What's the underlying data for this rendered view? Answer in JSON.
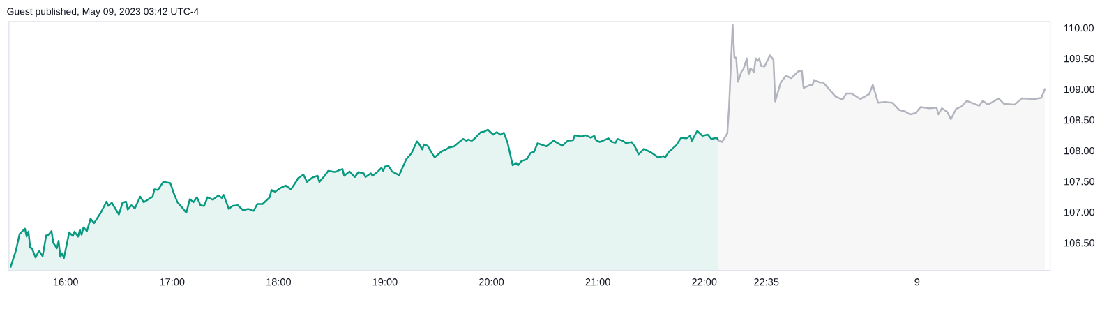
{
  "chart_data": {
    "type": "area",
    "title": "Guest published, May 09, 2023 03:42 UTC-4",
    "xlim": [
      "2023-05-08T15:28",
      "2023-05-09T01:15"
    ],
    "ylim": [
      106.05,
      110.1
    ],
    "xticks": [
      {
        "value": "2023-05-08T16:00",
        "label": "16:00"
      },
      {
        "value": "2023-05-08T17:00",
        "label": "17:00"
      },
      {
        "value": "2023-05-08T18:00",
        "label": "18:00"
      },
      {
        "value": "2023-05-08T19:00",
        "label": "19:00"
      },
      {
        "value": "2023-05-08T20:00",
        "label": "20:00"
      },
      {
        "value": "2023-05-08T21:00",
        "label": "21:00"
      },
      {
        "value": "2023-05-08T22:00",
        "label": "22:00"
      },
      {
        "value": "2023-05-08T22:35",
        "label": "22:35"
      },
      {
        "value": "2023-05-09T00:00",
        "label": "9"
      }
    ],
    "yticks": [
      {
        "value": 106.5,
        "label": "106.50"
      },
      {
        "value": 107,
        "label": "107.00"
      },
      {
        "value": 107.5,
        "label": "107.50"
      },
      {
        "value": 108,
        "label": "108.00"
      },
      {
        "value": 108.5,
        "label": "108.50"
      },
      {
        "value": 109,
        "label": "109.00"
      },
      {
        "value": 109.5,
        "label": "109.50"
      },
      {
        "value": 110,
        "label": "110.00"
      }
    ],
    "grid": false,
    "legend": false,
    "series": [
      {
        "color": "#089981",
        "x": [
          "2023-05-08T15:29",
          "2023-05-08T15:32",
          "2023-05-08T15:34",
          "2023-05-08T15:37",
          "2023-05-08T15:38",
          "2023-05-08T15:39",
          "2023-05-08T15:40",
          "2023-05-08T15:41",
          "2023-05-08T15:43",
          "2023-05-08T15:45",
          "2023-05-08T15:47",
          "2023-05-08T15:49",
          "2023-05-08T15:50",
          "2023-05-08T15:52",
          "2023-05-08T15:53",
          "2023-05-08T15:55",
          "2023-05-08T15:56",
          "2023-05-08T15:57",
          "2023-05-08T15:58",
          "2023-05-08T15:59",
          "2023-05-08T16:02",
          "2023-05-08T16:04",
          "2023-05-08T16:05",
          "2023-05-08T16:07",
          "2023-05-08T16:08",
          "2023-05-08T16:09",
          "2023-05-08T16:10",
          "2023-05-08T16:12",
          "2023-05-08T16:14",
          "2023-05-08T16:16",
          "2023-05-08T16:20",
          "2023-05-08T16:23",
          "2023-05-08T16:24",
          "2023-05-08T16:26",
          "2023-05-08T16:30",
          "2023-05-08T16:32",
          "2023-05-08T16:34",
          "2023-05-08T16:35",
          "2023-05-08T16:37",
          "2023-05-08T16:39",
          "2023-05-08T16:42",
          "2023-05-08T16:44",
          "2023-05-08T16:49",
          "2023-05-08T16:50",
          "2023-05-08T16:52",
          "2023-05-08T16:55",
          "2023-05-08T16:59",
          "2023-05-08T17:01",
          "2023-05-08T17:03",
          "2023-05-08T17:06",
          "2023-05-08T17:08",
          "2023-05-08T17:09",
          "2023-05-08T17:10",
          "2023-05-08T17:12",
          "2023-05-08T17:14",
          "2023-05-08T17:16",
          "2023-05-08T17:18",
          "2023-05-08T17:20",
          "2023-05-08T17:23",
          "2023-05-08T17:26",
          "2023-05-08T17:28",
          "2023-05-08T17:29",
          "2023-05-08T17:32",
          "2023-05-08T17:34",
          "2023-05-08T17:37",
          "2023-05-08T17:40",
          "2023-05-08T17:43",
          "2023-05-08T17:46",
          "2023-05-08T17:48",
          "2023-05-08T17:51",
          "2023-05-08T17:55",
          "2023-05-08T17:56",
          "2023-05-08T17:58",
          "2023-05-08T18:01",
          "2023-05-08T18:04",
          "2023-05-08T18:07",
          "2023-05-08T18:10",
          "2023-05-08T18:11",
          "2023-05-08T18:14",
          "2023-05-08T18:16",
          "2023-05-08T18:19",
          "2023-05-08T18:22",
          "2023-05-08T18:23",
          "2023-05-08T18:26",
          "2023-05-08T18:28",
          "2023-05-08T18:32",
          "2023-05-08T18:34",
          "2023-05-08T18:36",
          "2023-05-08T18:37",
          "2023-05-08T18:40",
          "2023-05-08T18:43",
          "2023-05-08T18:45",
          "2023-05-08T18:48",
          "2023-05-08T18:49",
          "2023-05-08T18:52",
          "2023-05-08T18:53",
          "2023-05-08T18:56",
          "2023-05-08T18:58",
          "2023-05-08T18:59",
          "2023-05-08T19:00",
          "2023-05-08T19:02",
          "2023-05-08T19:04",
          "2023-05-08T19:08",
          "2023-05-08T19:12",
          "2023-05-08T19:15",
          "2023-05-08T19:18",
          "2023-05-08T19:19",
          "2023-05-08T19:21",
          "2023-05-08T19:22",
          "2023-05-08T19:24",
          "2023-05-08T19:26",
          "2023-05-08T19:28",
          "2023-05-08T19:30",
          "2023-05-08T19:32",
          "2023-05-08T19:34",
          "2023-05-08T19:36",
          "2023-05-08T19:39",
          "2023-05-08T19:41",
          "2023-05-08T19:44",
          "2023-05-08T19:46",
          "2023-05-08T19:47",
          "2023-05-08T19:49",
          "2023-05-08T19:51",
          "2023-05-08T19:54",
          "2023-05-08T19:56",
          "2023-05-08T19:58",
          "2023-05-08T20:01",
          "2023-05-08T20:03",
          "2023-05-08T20:05",
          "2023-05-08T20:07",
          "2023-05-08T20:09",
          "2023-05-08T20:12",
          "2023-05-08T20:14",
          "2023-05-08T20:15",
          "2023-05-08T20:17",
          "2023-05-08T20:20",
          "2023-05-08T20:22",
          "2023-05-08T20:24",
          "2023-05-08T20:26",
          "2023-05-08T20:31",
          "2023-05-08T20:35",
          "2023-05-08T20:40",
          "2023-05-08T20:43",
          "2023-05-08T20:46",
          "2023-05-08T20:47",
          "2023-05-08T20:51",
          "2023-05-08T20:53",
          "2023-05-08T20:56",
          "2023-05-08T20:58",
          "2023-05-08T20:59",
          "2023-05-08T21:01",
          "2023-05-08T21:06",
          "2023-05-08T21:08",
          "2023-05-08T21:10",
          "2023-05-08T21:11",
          "2023-05-08T21:14",
          "2023-05-08T21:16",
          "2023-05-08T21:19",
          "2023-05-08T21:21",
          "2023-05-08T21:23",
          "2023-05-08T21:26",
          "2023-05-08T21:30",
          "2023-05-08T21:34",
          "2023-05-08T21:37",
          "2023-05-08T21:38",
          "2023-05-08T21:40",
          "2023-05-08T21:44",
          "2023-05-08T21:47",
          "2023-05-08T21:50",
          "2023-05-08T21:52",
          "2023-05-08T21:53",
          "2023-05-08T21:56",
          "2023-05-08T21:59",
          "2023-05-08T22:02",
          "2023-05-08T22:04",
          "2023-05-08T22:07",
          "2023-05-08T22:08"
        ],
        "values": [
          106.11,
          106.38,
          106.64,
          106.73,
          106.6,
          106.68,
          106.42,
          106.41,
          106.26,
          106.37,
          106.28,
          106.62,
          106.62,
          106.69,
          106.5,
          106.41,
          106.53,
          106.27,
          106.33,
          106.25,
          106.67,
          106.61,
          106.68,
          106.6,
          106.71,
          106.63,
          106.75,
          106.69,
          106.89,
          106.82,
          107.0,
          107.17,
          107.1,
          107.15,
          106.96,
          107.15,
          107.17,
          107.04,
          107.11,
          107.06,
          107.25,
          107.16,
          107.25,
          107.37,
          107.36,
          107.49,
          107.47,
          107.3,
          107.16,
          107.06,
          106.99,
          107.1,
          107.21,
          107.16,
          107.24,
          107.11,
          107.1,
          107.24,
          107.2,
          107.27,
          107.23,
          107.28,
          107.05,
          107.1,
          107.11,
          107.03,
          107.05,
          107.02,
          107.13,
          107.13,
          107.24,
          107.36,
          107.33,
          107.39,
          107.43,
          107.37,
          107.5,
          107.55,
          107.61,
          107.49,
          107.56,
          107.59,
          107.49,
          107.59,
          107.67,
          107.65,
          107.68,
          107.7,
          107.59,
          107.66,
          107.57,
          107.65,
          107.63,
          107.57,
          107.63,
          107.59,
          107.66,
          107.72,
          107.67,
          107.74,
          107.75,
          107.66,
          107.6,
          107.86,
          107.96,
          108.15,
          108.12,
          108.02,
          108.1,
          108.08,
          107.98,
          107.89,
          107.94,
          107.99,
          108.01,
          108.05,
          108.07,
          108.12,
          108.19,
          108.16,
          108.18,
          108.16,
          108.21,
          108.3,
          108.31,
          108.34,
          108.26,
          108.3,
          108.26,
          108.29,
          108.14,
          107.76,
          107.8,
          107.76,
          107.83,
          107.86,
          107.96,
          107.98,
          108.12,
          108.07,
          108.16,
          108.08,
          108.16,
          108.17,
          108.25,
          108.23,
          108.25,
          108.21,
          108.24,
          108.17,
          108.14,
          108.2,
          108.14,
          108.13,
          108.19,
          108.16,
          108.12,
          108.14,
          108.06,
          107.94,
          108.03,
          107.97,
          107.89,
          107.91,
          107.89,
          107.98,
          108.08,
          108.21,
          108.2,
          108.24,
          108.16,
          108.32,
          108.24,
          108.26,
          108.19,
          108.21,
          108.17
        ]
      },
      {
        "color": "#b2b5be",
        "x": [
          "2023-05-08T22:08",
          "2023-05-08T22:10",
          "2023-05-08T22:13",
          "2023-05-08T22:14",
          "2023-05-08T22:16",
          "2023-05-08T22:17",
          "2023-05-08T22:18",
          "2023-05-08T22:19",
          "2023-05-08T22:21",
          "2023-05-08T22:22",
          "2023-05-08T22:24",
          "2023-05-08T22:25",
          "2023-05-08T22:26",
          "2023-05-08T22:28",
          "2023-05-08T22:29",
          "2023-05-08T22:30",
          "2023-05-08T22:31",
          "2023-05-08T22:32",
          "2023-05-08T22:34",
          "2023-05-08T22:37",
          "2023-05-08T22:39",
          "2023-05-08T22:40",
          "2023-05-08T22:43",
          "2023-05-08T22:46",
          "2023-05-08T22:49",
          "2023-05-08T22:53",
          "2023-05-08T22:55",
          "2023-05-08T22:56",
          "2023-05-08T22:59",
          "2023-05-08T23:01",
          "2023-05-08T23:02",
          "2023-05-08T23:05",
          "2023-05-08T23:07",
          "2023-05-08T23:14",
          "2023-05-08T23:18",
          "2023-05-08T23:20",
          "2023-05-08T23:23",
          "2023-05-08T23:28",
          "2023-05-08T23:33",
          "2023-05-08T23:35",
          "2023-05-08T23:38",
          "2023-05-08T23:42",
          "2023-05-08T23:46",
          "2023-05-08T23:50",
          "2023-05-08T23:53",
          "2023-05-08T23:56",
          "2023-05-08T23:59",
          "2023-05-09T00:02",
          "2023-05-09T00:07",
          "2023-05-09T00:11",
          "2023-05-09T00:12",
          "2023-05-09T00:14",
          "2023-05-09T00:17",
          "2023-05-09T00:19",
          "2023-05-09T00:22",
          "2023-05-09T00:25",
          "2023-05-09T00:28",
          "2023-05-09T00:35",
          "2023-05-09T00:37",
          "2023-05-09T00:40",
          "2023-05-09T00:43",
          "2023-05-09T00:46",
          "2023-05-09T00:49",
          "2023-05-09T00:55",
          "2023-05-09T00:59",
          "2023-05-09T01:06",
          "2023-05-09T01:10",
          "2023-05-09T01:12"
        ],
        "values": [
          108.17,
          108.14,
          108.28,
          108.72,
          110.05,
          109.52,
          109.51,
          109.12,
          109.29,
          109.32,
          109.5,
          109.24,
          109.34,
          109.28,
          109.5,
          109.46,
          109.5,
          109.38,
          109.37,
          109.55,
          109.48,
          108.8,
          109.1,
          109.22,
          109.18,
          109.29,
          109.3,
          109.02,
          109.06,
          109.07,
          109.15,
          109.11,
          109.11,
          108.88,
          108.83,
          108.93,
          108.93,
          108.84,
          108.92,
          109.07,
          108.78,
          108.79,
          108.78,
          108.66,
          108.64,
          108.59,
          108.61,
          108.71,
          108.69,
          108.7,
          108.59,
          108.69,
          108.63,
          108.51,
          108.68,
          108.72,
          108.81,
          108.73,
          108.81,
          108.75,
          108.8,
          108.85,
          108.76,
          108.75,
          108.85,
          108.84,
          108.86,
          109.0
        ]
      }
    ]
  }
}
